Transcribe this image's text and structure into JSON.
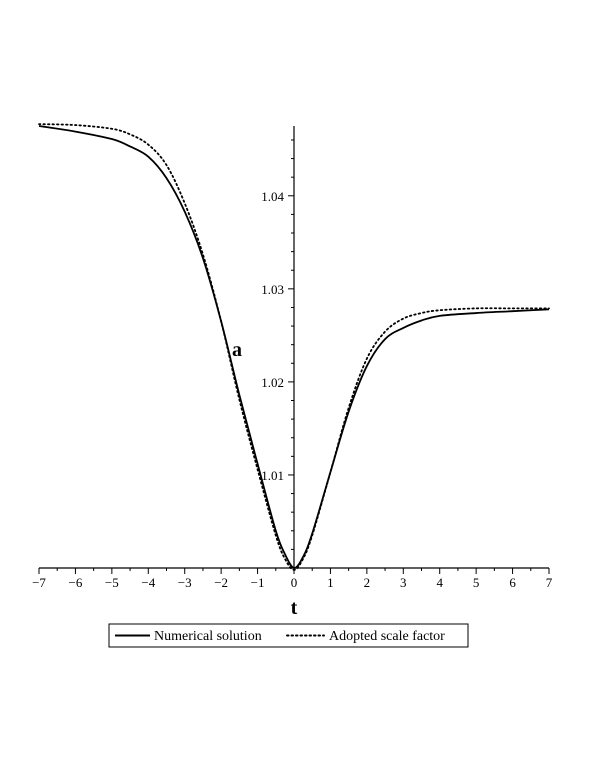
{
  "chart_data": {
    "type": "line",
    "xlabel": "t",
    "ylabel": "a",
    "xlim": [
      -7,
      7
    ],
    "ylim": [
      1.0,
      1.0475
    ],
    "grid": false,
    "legend_position": "bottom",
    "x_ticks": [
      -7,
      -6,
      -5,
      -4,
      -3,
      -2,
      -1,
      0,
      1,
      2,
      3,
      4,
      5,
      6,
      7
    ],
    "x_tick_labels": [
      "−7",
      "−6",
      "−5",
      "−4",
      "−3",
      "−2",
      "−1",
      "0",
      "1",
      "2",
      "3",
      "4",
      "5",
      "6",
      "7"
    ],
    "y_ticks": [
      1.01,
      1.02,
      1.03,
      1.04
    ],
    "y_tick_labels": [
      "1.01",
      "1.02",
      "1.03",
      "1.04"
    ],
    "series": [
      {
        "name": "Numerical solution",
        "style": "solid",
        "color": "#000000",
        "x": [
          -7,
          -6,
          -5,
          -4.5,
          -4,
          -3.5,
          -3,
          -2.5,
          -2,
          -1.5,
          -1,
          -0.5,
          -0.25,
          0,
          0.25,
          0.5,
          1,
          1.5,
          2,
          2.5,
          3,
          3.5,
          4,
          5,
          6,
          7
        ],
        "y": [
          1.0475,
          1.0469,
          1.0461,
          1.0453,
          1.0442,
          1.0419,
          1.0383,
          1.0333,
          1.0265,
          1.0186,
          1.0112,
          1.004,
          1.0015,
          1.0,
          1.0012,
          1.0037,
          1.0103,
          1.0168,
          1.0217,
          1.0246,
          1.0258,
          1.0266,
          1.0271,
          1.0274,
          1.0276,
          1.0278
        ]
      },
      {
        "name": "Adopted scale factor",
        "style": "dotted",
        "color": "#000000",
        "x": [
          -7,
          -6,
          -5,
          -4.5,
          -4,
          -3.5,
          -3,
          -2.5,
          -2,
          -1.5,
          -1,
          -0.5,
          -0.25,
          0,
          0.25,
          0.5,
          1,
          1.5,
          2,
          2.5,
          3,
          3.5,
          4,
          5,
          6,
          7
        ],
        "y": [
          1.0477,
          1.0476,
          1.0472,
          1.0466,
          1.0455,
          1.0433,
          1.0392,
          1.0337,
          1.0265,
          1.0181,
          1.0106,
          1.0035,
          1.001,
          0.9998,
          1.001,
          1.0035,
          1.0103,
          1.0172,
          1.0225,
          1.0254,
          1.0268,
          1.0274,
          1.0277,
          1.0279,
          1.0279,
          1.0279
        ]
      }
    ]
  }
}
